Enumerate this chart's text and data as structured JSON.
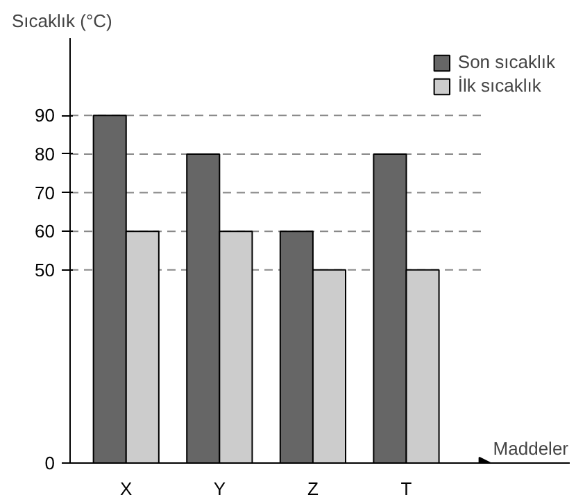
{
  "chart_data": {
    "type": "bar",
    "xlabel": "Maddeler",
    "ylabel": "Sıcaklık (°C)",
    "categories": [
      "X",
      "Y",
      "Z",
      "T"
    ],
    "series": [
      {
        "name": "Son sıcaklık",
        "color": "#666666",
        "values": [
          90,
          80,
          60,
          80
        ]
      },
      {
        "name": "İlk sıcaklık",
        "color": "#cccccc",
        "values": [
          60,
          60,
          50,
          50
        ]
      }
    ],
    "ylim": [
      0,
      110
    ],
    "yticks": [
      0,
      50,
      60,
      70,
      80,
      90
    ],
    "grid": "y",
    "legend": "top right"
  }
}
